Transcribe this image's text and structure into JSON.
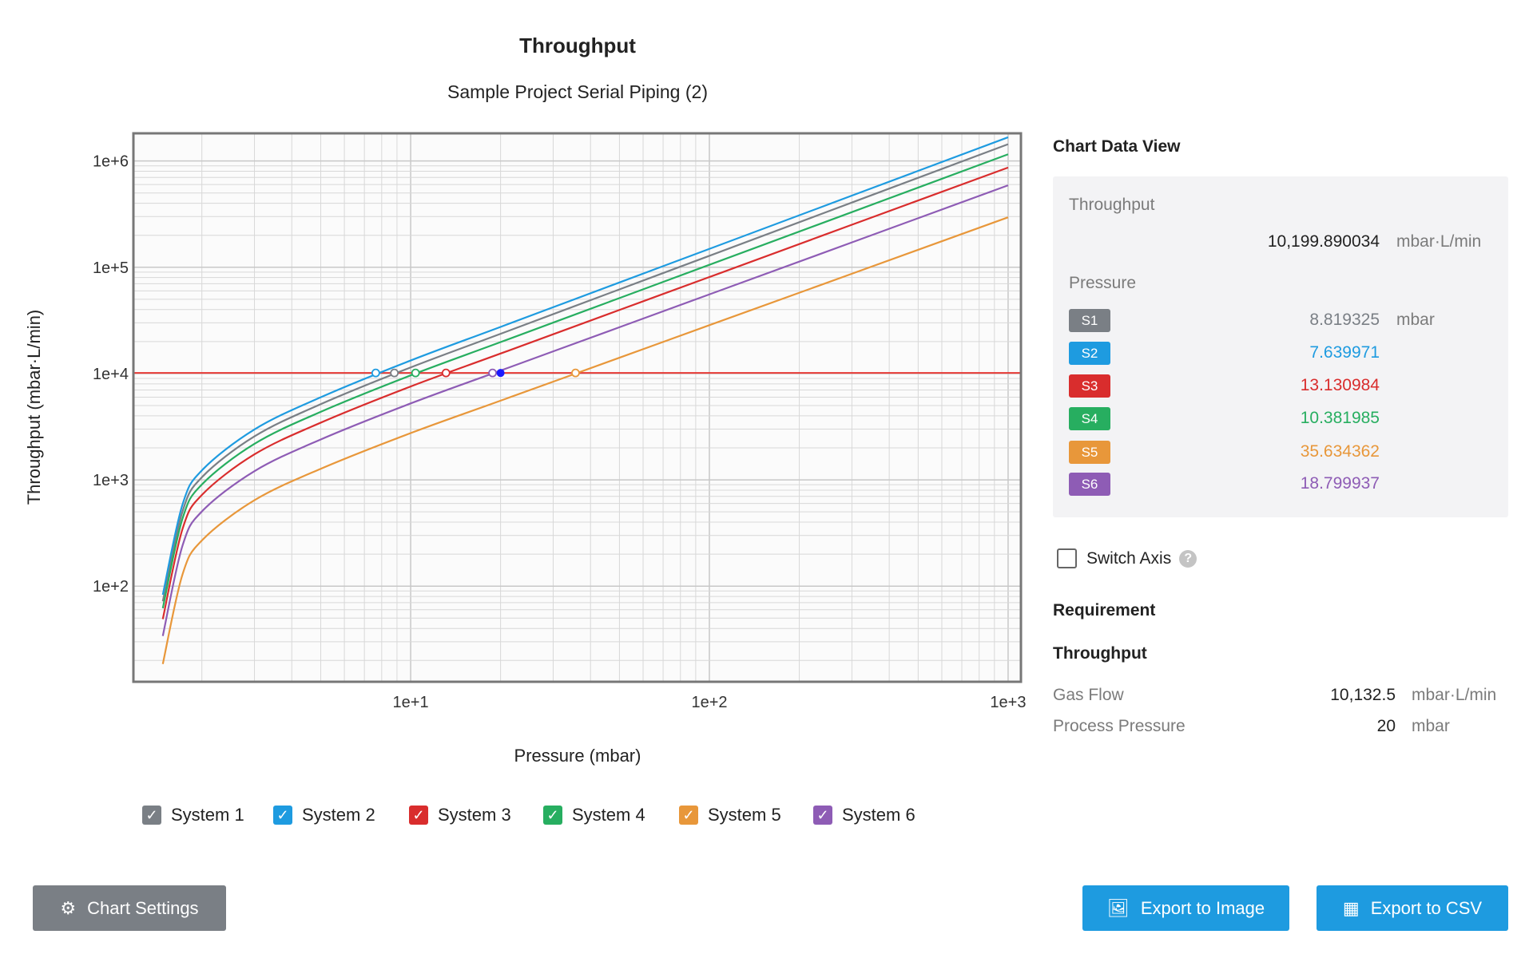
{
  "chart_data": {
    "type": "line",
    "title": "Throughput",
    "subtitle": "Sample Project Serial Piping (2)",
    "xlabel": "Pressure (mbar)",
    "ylabel": "Throughput (mbar·L/min)",
    "xscale": "log",
    "yscale": "log",
    "xlim": [
      1.18,
      1104
    ],
    "ylim": [
      12.6,
      1820000
    ],
    "grid": true,
    "x_ticks": [
      {
        "value": 10,
        "label": "1e+1"
      },
      {
        "value": 100,
        "label": "1e+2"
      },
      {
        "value": 1000,
        "label": "1e+3"
      }
    ],
    "y_ticks": [
      {
        "value": 100,
        "label": "1e+2"
      },
      {
        "value": 1000,
        "label": "1e+3"
      },
      {
        "value": 10000,
        "label": "1e+4"
      },
      {
        "value": 100000,
        "label": "1e+5"
      },
      {
        "value": 1000000,
        "label": "1e+6"
      }
    ],
    "x": [
      1.48,
      1.72,
      2,
      3,
      5,
      10,
      20,
      50,
      100,
      300,
      1000
    ],
    "series": [
      {
        "name": "System 1",
        "color": "#7a7f85",
        "values": [
          72,
          497,
          1057,
          2564,
          5152,
          11420,
          23660,
          61940,
          128200,
          406400,
          1438000
        ]
      },
      {
        "name": "System 2",
        "color": "#1e9be0",
        "values": [
          83,
          577,
          1227,
          2979,
          5984,
          13270,
          27480,
          71940,
          148900,
          472100,
          1671000
        ]
      },
      {
        "name": "System 3",
        "color": "#d92d2d",
        "values": [
          49,
          340,
          721,
          1738,
          3451,
          7557,
          15430,
          39650,
          80910,
          251200,
          867000
        ]
      },
      {
        "name": "System 4",
        "color": "#27ae60",
        "values": [
          62,
          426,
          904,
          2183,
          4365,
          9616,
          19770,
          51290,
          105500,
          330400,
          1156000
        ]
      },
      {
        "name": "System 5",
        "color": "#e8973a",
        "values": [
          18.5,
          127,
          269,
          644,
          1271,
          2754,
          5559,
          14090,
          28510,
          86900,
          295100
        ]
      },
      {
        "name": "System 6",
        "color": "#8e5cb5",
        "values": [
          34,
          237,
          504,
          1208,
          2399,
          5236,
          10670,
          27290,
          55590,
          171400,
          590200
        ]
      }
    ],
    "requirement_line": {
      "y": 10132.5,
      "color": "#e53935"
    },
    "intersection_points": [
      8.819325,
      7.639971,
      13.130984,
      10.381985,
      35.634362,
      18.799937
    ],
    "operating_point": {
      "x": 20,
      "y": 10132.5,
      "color": "#1a1aff"
    }
  },
  "legend": [
    {
      "label": "System 1",
      "checked": true,
      "color": "#7a7f85"
    },
    {
      "label": "System 2",
      "checked": true,
      "color": "#1e9be0"
    },
    {
      "label": "System 3",
      "checked": true,
      "color": "#d92d2d"
    },
    {
      "label": "System 4",
      "checked": true,
      "color": "#27ae60"
    },
    {
      "label": "System 5",
      "checked": true,
      "color": "#e8973a"
    },
    {
      "label": "System 6",
      "checked": true,
      "color": "#8e5cb5"
    }
  ],
  "buttons": {
    "chart_settings": "Chart Settings",
    "export_image": "Export to Image",
    "export_csv": "Export to CSV"
  },
  "data_view": {
    "title": "Chart Data View",
    "throughput_label": "Throughput",
    "throughput_value": "10,199.890034",
    "throughput_unit": "mbar·L/min",
    "pressure_label": "Pressure",
    "pressure_unit": "mbar",
    "rows": [
      {
        "badge": "S1",
        "value": "8.819325",
        "color": "#7a7f85"
      },
      {
        "badge": "S2",
        "value": "7.639971",
        "color": "#1e9be0"
      },
      {
        "badge": "S3",
        "value": "13.130984",
        "color": "#d92d2d"
      },
      {
        "badge": "S4",
        "value": "10.381985",
        "color": "#27ae60"
      },
      {
        "badge": "S5",
        "value": "35.634362",
        "color": "#e8973a"
      },
      {
        "badge": "S6",
        "value": "18.799937",
        "color": "#8e5cb5"
      }
    ]
  },
  "switch_axis": {
    "label": "Switch Axis",
    "checked": false
  },
  "requirement": {
    "title": "Requirement",
    "subtitle": "Throughput",
    "gas_flow_label": "Gas Flow",
    "gas_flow_value": "10,132.5",
    "gas_flow_unit": "mbar·L/min",
    "process_pressure_label": "Process Pressure",
    "process_pressure_value": "20",
    "process_pressure_unit": "mbar"
  }
}
